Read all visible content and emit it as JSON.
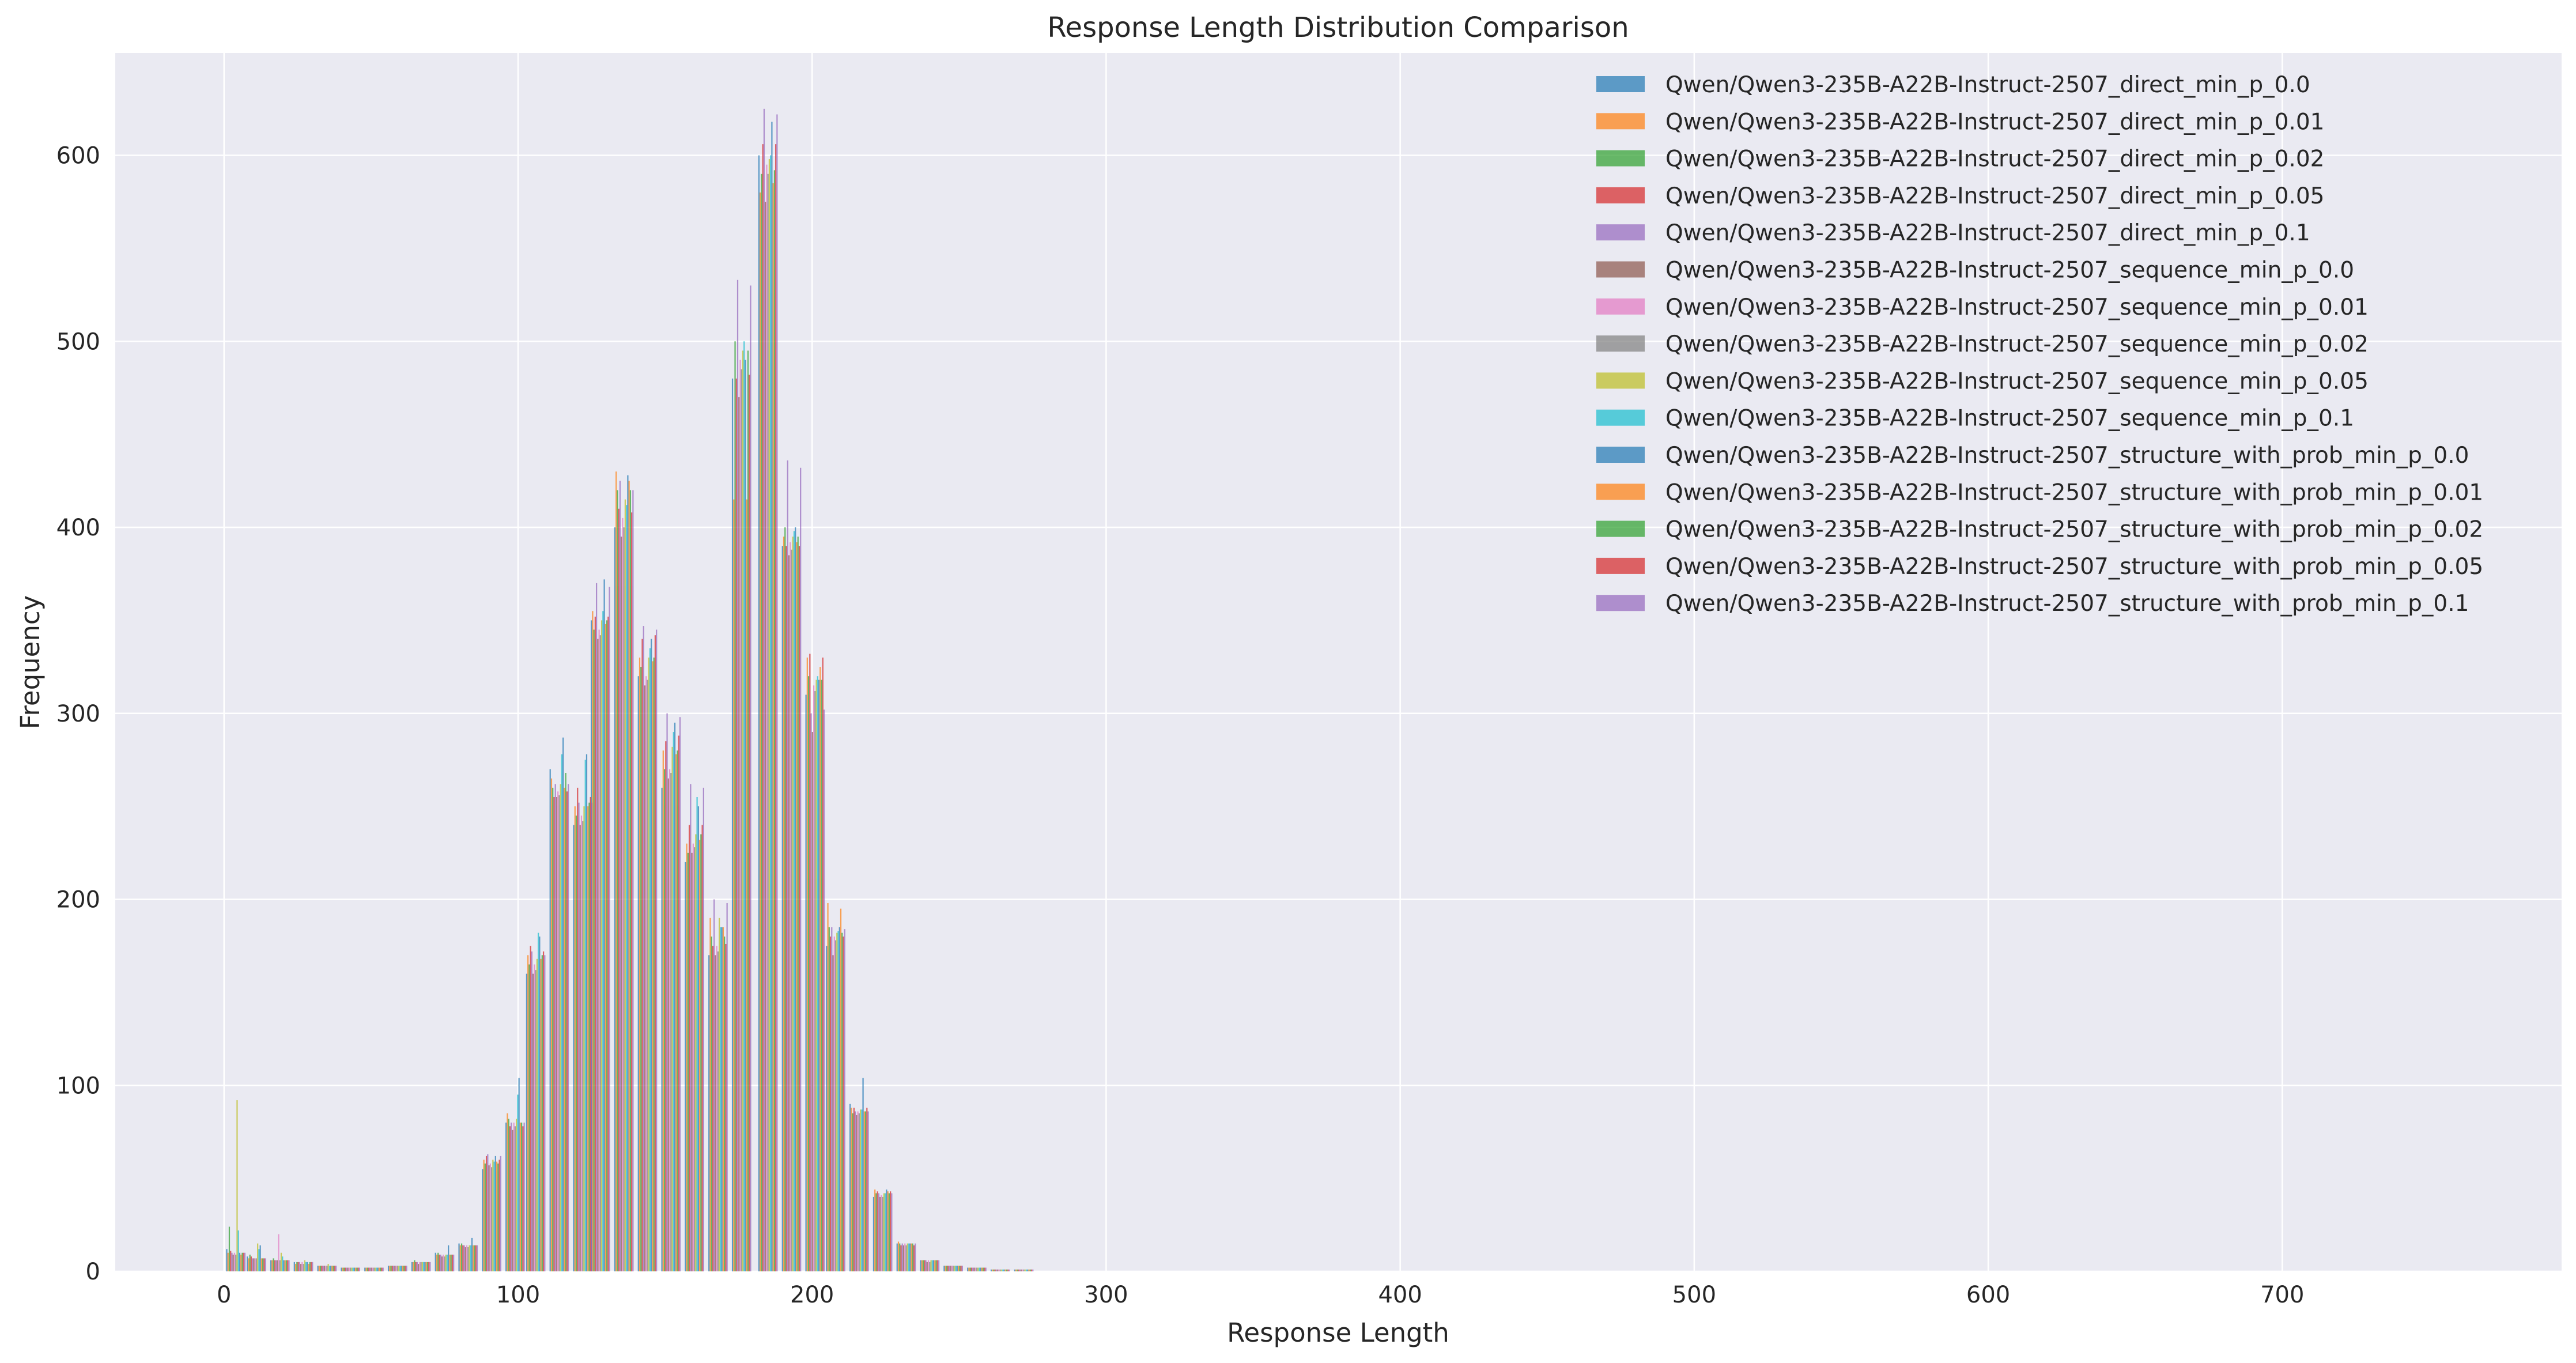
{
  "chart_data": {
    "type": "bar",
    "title": "Response Length Distribution Comparison",
    "xlabel": "Response Length",
    "ylabel": "Frequency",
    "xlim": [
      -37,
      795
    ],
    "ylim": [
      0,
      655
    ],
    "xticks": [
      0,
      100,
      200,
      300,
      400,
      500,
      600,
      700
    ],
    "yticks": [
      0,
      100,
      200,
      300,
      400,
      500,
      600
    ],
    "grid": true,
    "legend_position": "top-right",
    "bar_opacity": 0.7,
    "categories": [
      4,
      11,
      19,
      27,
      35,
      43,
      51,
      59,
      67,
      75,
      83,
      91,
      99,
      106,
      114,
      122,
      128,
      136,
      144,
      152,
      160,
      168,
      176,
      185,
      193,
      201,
      208,
      216,
      224,
      232,
      240,
      248,
      256,
      264,
      272,
      280,
      288,
      296
    ],
    "series": [
      {
        "name": "Qwen/Qwen3-235B-A22B-Instruct-2507_direct_min_p_0.0",
        "color": "#1f77b4",
        "values": [
          12,
          8,
          6,
          5,
          3,
          2,
          2,
          3,
          5,
          10,
          15,
          55,
          80,
          160,
          270,
          240,
          350,
          400,
          320,
          260,
          220,
          170,
          480,
          600,
          390,
          310,
          175,
          90,
          40,
          15,
          6,
          3,
          2,
          1,
          1,
          0,
          0,
          0
        ]
      },
      {
        "name": "Qwen/Qwen3-235B-A22B-Instruct-2507_direct_min_p_0.01",
        "color": "#ff7f0e",
        "values": [
          10,
          7,
          6,
          4,
          3,
          2,
          2,
          3,
          5,
          9,
          14,
          60,
          85,
          170,
          265,
          250,
          355,
          430,
          330,
          280,
          230,
          190,
          415,
          580,
          395,
          330,
          198,
          88,
          44,
          16,
          6,
          3,
          2,
          1,
          1,
          0,
          0,
          0
        ]
      },
      {
        "name": "Qwen/Qwen3-235B-A22B-Instruct-2507_direct_min_p_0.02",
        "color": "#2ca02c",
        "values": [
          24,
          9,
          7,
          5,
          3,
          2,
          2,
          3,
          6,
          10,
          15,
          58,
          82,
          165,
          260,
          245,
          345,
          420,
          325,
          270,
          225,
          180,
          500,
          590,
          400,
          320,
          185,
          85,
          42,
          15,
          6,
          3,
          2,
          1,
          1,
          0,
          0,
          0
        ]
      },
      {
        "name": "Qwen/Qwen3-235B-A22B-Instruct-2507_direct_min_p_0.05",
        "color": "#d62728",
        "values": [
          11,
          8,
          6,
          5,
          3,
          2,
          2,
          3,
          5,
          9,
          14,
          62,
          78,
          175,
          255,
          260,
          352,
          410,
          340,
          285,
          240,
          175,
          480,
          606,
          390,
          332,
          180,
          88,
          43,
          14,
          6,
          3,
          2,
          1,
          1,
          0,
          0,
          0
        ]
      },
      {
        "name": "Qwen/Qwen3-235B-A22B-Instruct-2507_direct_min_p_0.1",
        "color": "#9467bd",
        "values": [
          10,
          7,
          6,
          5,
          3,
          2,
          2,
          3,
          5,
          9,
          14,
          63,
          80,
          172,
          262,
          252,
          370,
          425,
          347,
          300,
          262,
          200,
          533,
          625,
          436,
          300,
          185,
          86,
          42,
          15,
          6,
          3,
          2,
          1,
          1,
          0,
          0,
          0
        ]
      },
      {
        "name": "Qwen/Qwen3-235B-A22B-Instruct-2507_sequence_min_p_0.0",
        "color": "#8c564b",
        "values": [
          9,
          7,
          6,
          4,
          3,
          2,
          2,
          3,
          4,
          8,
          13,
          57,
          76,
          160,
          255,
          240,
          340,
          395,
          315,
          265,
          225,
          170,
          470,
          575,
          385,
          290,
          170,
          84,
          40,
          14,
          5,
          3,
          2,
          1,
          1,
          0,
          0,
          0
        ]
      },
      {
        "name": "Qwen/Qwen3-235B-A22B-Instruct-2507_sequence_min_p_0.01",
        "color": "#e377c2",
        "values": [
          10,
          7,
          20,
          5,
          3,
          2,
          2,
          3,
          5,
          9,
          14,
          58,
          80,
          165,
          258,
          245,
          345,
          405,
          320,
          270,
          230,
          175,
          490,
          595,
          392,
          315,
          180,
          86,
          41,
          15,
          6,
          3,
          2,
          1,
          1,
          0,
          0,
          0
        ]
      },
      {
        "name": "Qwen/Qwen3-235B-A22B-Instruct-2507_sequence_min_p_0.02",
        "color": "#7f7f7f",
        "values": [
          9,
          7,
          6,
          4,
          3,
          2,
          2,
          3,
          5,
          8,
          13,
          56,
          78,
          162,
          256,
          242,
          342,
          400,
          318,
          268,
          228,
          172,
          485,
          590,
          388,
          312,
          178,
          85,
          40,
          14,
          5,
          3,
          2,
          1,
          1,
          0,
          0,
          0
        ]
      },
      {
        "name": "Qwen/Qwen3-235B-A22B-Instruct-2507_sequence_min_p_0.05",
        "color": "#bcbd22",
        "values": [
          92,
          15,
          10,
          6,
          4,
          2,
          2,
          3,
          5,
          9,
          14,
          60,
          82,
          168,
          262,
          250,
          350,
          415,
          330,
          282,
          235,
          190,
          495,
          598,
          395,
          318,
          182,
          87,
          42,
          15,
          6,
          3,
          2,
          1,
          1,
          0,
          0,
          0
        ]
      },
      {
        "name": "Qwen/Qwen3-235B-A22B-Instruct-2507_sequence_min_p_0.1",
        "color": "#17becf",
        "values": [
          22,
          12,
          8,
          5,
          3,
          2,
          2,
          3,
          5,
          9,
          14,
          59,
          95,
          182,
          278,
          275,
          355,
          412,
          335,
          290,
          255,
          185,
          500,
          600,
          398,
          320,
          183,
          87,
          42,
          15,
          6,
          3,
          2,
          1,
          1,
          0,
          0,
          0
        ]
      },
      {
        "name": "Qwen/Qwen3-235B-A22B-Instruct-2507_structure_with_prob_min_p_0.0",
        "color": "#1f77b4",
        "values": [
          10,
          14,
          6,
          5,
          3,
          2,
          2,
          3,
          5,
          14,
          18,
          62,
          104,
          180,
          287,
          278,
          372,
          428,
          340,
          295,
          250,
          185,
          490,
          618,
          400,
          318,
          185,
          104,
          44,
          15,
          6,
          3,
          2,
          1,
          1,
          0,
          0,
          0
        ]
      },
      {
        "name": "Qwen/Qwen3-235B-A22B-Instruct-2507_structure_with_prob_min_p_0.01",
        "color": "#ff7f0e",
        "values": [
          9,
          7,
          6,
          4,
          3,
          2,
          2,
          3,
          5,
          9,
          14,
          59,
          80,
          168,
          260,
          250,
          348,
          425,
          328,
          278,
          232,
          185,
          415,
          585,
          392,
          325,
          195,
          86,
          43,
          15,
          6,
          3,
          2,
          1,
          1,
          0,
          0,
          0
        ]
      },
      {
        "name": "Qwen/Qwen3-235B-A22B-Instruct-2507_structure_with_prob_min_p_0.02",
        "color": "#2ca02c",
        "values": [
          10,
          7,
          6,
          5,
          3,
          2,
          2,
          3,
          5,
          9,
          14,
          58,
          80,
          170,
          268,
          252,
          350,
          420,
          330,
          280,
          235,
          180,
          495,
          592,
          395,
          318,
          182,
          86,
          42,
          15,
          6,
          3,
          2,
          1,
          1,
          0,
          0,
          0
        ]
      },
      {
        "name": "Qwen/Qwen3-235B-A22B-Instruct-2507_structure_with_prob_min_p_0.05",
        "color": "#d62728",
        "values": [
          10,
          7,
          6,
          5,
          3,
          2,
          2,
          3,
          5,
          9,
          14,
          60,
          78,
          172,
          258,
          255,
          352,
          408,
          342,
          288,
          240,
          176,
          482,
          606,
          390,
          330,
          180,
          88,
          43,
          14,
          6,
          3,
          2,
          1,
          1,
          0,
          0,
          0
        ]
      },
      {
        "name": "Qwen/Qwen3-235B-A22B-Instruct-2507_structure_with_prob_min_p_0.1",
        "color": "#9467bd",
        "values": [
          10,
          7,
          6,
          5,
          3,
          2,
          2,
          3,
          5,
          9,
          14,
          62,
          80,
          170,
          262,
          252,
          368,
          420,
          345,
          298,
          260,
          198,
          530,
          622,
          432,
          302,
          184,
          86,
          42,
          15,
          6,
          3,
          2,
          1,
          1,
          0,
          0,
          0
        ]
      }
    ]
  }
}
